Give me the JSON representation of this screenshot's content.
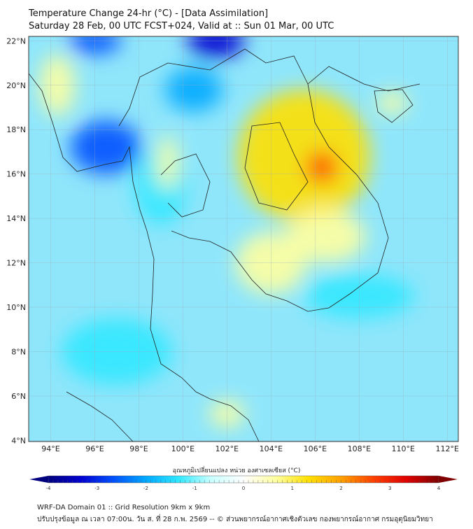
{
  "header": {
    "title": "Temperature Change 24-hr (°C) - [Data Assimilation]",
    "subtitle": "Saturday 28 Feb, 00 UTC FCST+024, Valid at :: Sun 01 Mar, 00 UTC"
  },
  "map": {
    "lat_labels": [
      "4°N",
      "6°N",
      "8°N",
      "10°N",
      "12°N",
      "14°N",
      "16°N",
      "18°N",
      "20°N",
      "22°N"
    ],
    "lat_values": [
      4,
      6,
      8,
      10,
      12,
      14,
      16,
      18,
      20,
      22
    ],
    "lon_labels": [
      "94°E",
      "96°E",
      "98°E",
      "100°E",
      "102°E",
      "104°E",
      "106°E",
      "108°E",
      "110°E",
      "112°E"
    ],
    "lon_values": [
      94,
      96,
      98,
      100,
      102,
      104,
      106,
      108,
      110,
      112
    ],
    "extent": {
      "lon": [
        93,
        112.5
      ],
      "lat": [
        3.95,
        22.2
      ]
    },
    "features": [
      {
        "lon": 96.5,
        "lat": 17.2,
        "value": -3.0,
        "rx": 1.6,
        "ry": 1.2
      },
      {
        "lon": 101.5,
        "lat": 22,
        "value": -3.2,
        "rx": 1.3,
        "ry": 0.8
      },
      {
        "lon": 96,
        "lat": 22,
        "value": -2.5,
        "rx": 1.2,
        "ry": 0.6
      },
      {
        "lon": 100.5,
        "lat": 19.8,
        "value": -2.2,
        "rx": 1.3,
        "ry": 1.0
      },
      {
        "lon": 99,
        "lat": 15.5,
        "value": -1.6,
        "rx": 1.2,
        "ry": 1.8
      },
      {
        "lon": 94.3,
        "lat": 20,
        "value": 0.8,
        "rx": 0.8,
        "ry": 1.4
      },
      {
        "lon": 105.5,
        "lat": 16.8,
        "value": 1.3,
        "rx": 3.0,
        "ry": 3.0
      },
      {
        "lon": 106.3,
        "lat": 16.3,
        "value": 2.4,
        "rx": 0.7,
        "ry": 0.7
      },
      {
        "lon": 106.5,
        "lat": 13.2,
        "value": 0.9,
        "rx": 1.8,
        "ry": 1.2
      },
      {
        "lon": 104,
        "lat": 12,
        "value": 0.6,
        "rx": 1.6,
        "ry": 1.4
      },
      {
        "lon": 109.5,
        "lat": 19.2,
        "value": 0.4,
        "rx": 0.7,
        "ry": 0.5
      },
      {
        "lon": 99.3,
        "lat": 16.5,
        "value": 0.5,
        "rx": 0.5,
        "ry": 1.2
      },
      {
        "lon": 102,
        "lat": 5.2,
        "value": 0.5,
        "rx": 0.8,
        "ry": 0.6
      },
      {
        "lon": 108,
        "lat": 10.5,
        "value": -1.3,
        "rx": 2.5,
        "ry": 1.0
      },
      {
        "lon": 97,
        "lat": 8,
        "value": -1.5,
        "rx": 2.5,
        "ry": 1.5
      }
    ]
  },
  "colorbar": {
    "label": "อุณหภูมิเปลี่ยนแปลง หน่วย องศาเซลเซียส (°C)",
    "ticks": [
      "-4",
      "-3",
      "-2",
      "-1",
      "0",
      "1",
      "2",
      "3",
      "4"
    ],
    "range": [
      -4,
      4
    ],
    "colors": [
      "#00007f",
      "#0000d0",
      "#0050ff",
      "#00a8ff",
      "#30e8ff",
      "#c8ffff",
      "#ffffff",
      "#ffffa0",
      "#ffe000",
      "#ffa000",
      "#ff4000",
      "#e00000",
      "#7f0000"
    ]
  },
  "footer": {
    "line1": "WRF-DA Domain 01 :: Grid Resolution 9km x 9km",
    "line2": "ปรับปรุงข้อมูล ณ เวลา 07:00น. วัน ส. ที่ 28 ก.พ. 2569 -- © ส่วนพยากรณ์อากาศเชิงตัวเลข กองพยากรณ์อากาศ กรมอุตุนิยมวิทยา"
  }
}
